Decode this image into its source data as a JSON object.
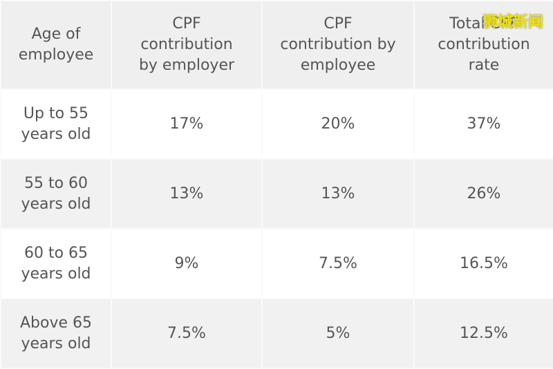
{
  "table": {
    "header": [
      "Age of\nemployee",
      "CPF\ncontribution\nby employer",
      "CPF\ncontribution by\nemployee",
      "Total CPF\ncontribution\nrate"
    ],
    "rows": [
      [
        "Up to 55\nyears old",
        "17%",
        "20%",
        "37%"
      ],
      [
        "55 to 60\nyears old",
        "13%",
        "13%",
        "26%"
      ],
      [
        "60 to 65\nyears old",
        "9%",
        "7.5%",
        "16.5%"
      ],
      [
        "Above 65\nyears old",
        "7.5%",
        "5%",
        "12.5%"
      ]
    ]
  },
  "watermark": "狮城新闻"
}
